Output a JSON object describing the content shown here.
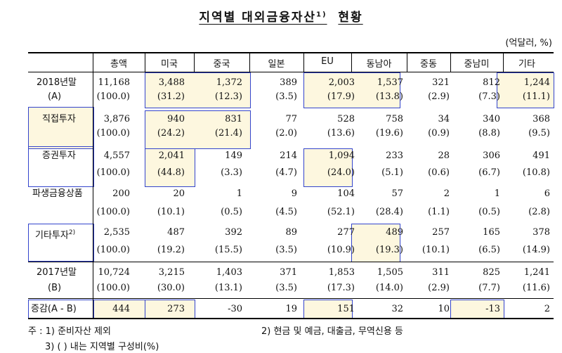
{
  "title": "지역별 대외금융자산",
  "title_sup": "1)",
  "title_suffix": "현황",
  "unit": "(억달러, %)",
  "columns": [
    "총액",
    "미국",
    "중국",
    "일본",
    "EU",
    "동남아",
    "중동",
    "중남미",
    "기타"
  ],
  "rows": {
    "y2018": {
      "label1": "2018년말",
      "label2": "(A)",
      "v": [
        "11,168",
        "3,488",
        "1,372",
        "389",
        "2,003",
        "1,537",
        "321",
        "812",
        "1,244"
      ],
      "p": [
        "(100.0)",
        "(31.2)",
        "(12.3)",
        "(3.5)",
        "(17.9)",
        "(13.8)",
        "(2.9)",
        "(7.3)",
        "(11.1)"
      ]
    },
    "direct": {
      "label": "직접투자",
      "v": [
        "3,876",
        "940",
        "831",
        "77",
        "528",
        "758",
        "34",
        "340",
        "368"
      ],
      "p": [
        "(100.0)",
        "(24.2)",
        "(21.4)",
        "(2.0)",
        "(13.6)",
        "(19.6)",
        "(0.9)",
        "(8.8)",
        "(9.5)"
      ]
    },
    "securities": {
      "label": "증권투자",
      "v": [
        "4,557",
        "2,041",
        "149",
        "214",
        "1,094",
        "233",
        "28",
        "306",
        "491"
      ],
      "p": [
        "(100.0)",
        "(44.8)",
        "(3.3)",
        "(4.7)",
        "(24.0)",
        "(5.1)",
        "(0.6)",
        "(6.7)",
        "(10.8)"
      ]
    },
    "derivatives": {
      "label": "파생금융상품",
      "v": [
        "200",
        "20",
        "1",
        "9",
        "104",
        "57",
        "2",
        "1",
        "6"
      ],
      "p": [
        "(100.0)",
        "(10.1)",
        "(0.5)",
        "(4.5)",
        "(52.1)",
        "(28.4)",
        "(1.1)",
        "(0.5)",
        "(2.8)"
      ]
    },
    "other": {
      "label": "기타투자",
      "label_sup": "2)",
      "v": [
        "2,535",
        "487",
        "392",
        "89",
        "277",
        "489",
        "257",
        "165",
        "378"
      ],
      "p": [
        "(100.0)",
        "(19.2)",
        "(15.5)",
        "(3.5)",
        "(10.9)",
        "(19.3)",
        "(10.1)",
        "(6.5)",
        "(14.9)"
      ]
    },
    "y2017": {
      "label1": "2017년말",
      "label2": "(B)",
      "v": [
        "10,724",
        "3,215",
        "1,403",
        "371",
        "1,853",
        "1,505",
        "311",
        "825",
        "1,241"
      ],
      "p": [
        "(100.0)",
        "(30.0)",
        "(13.1)",
        "(3.5)",
        "(17.3)",
        "(14.0)",
        "(2.9)",
        "(7.7)",
        "(11.6)"
      ]
    },
    "diff": {
      "label": "증감(A - B)",
      "v": [
        "444",
        "273",
        "-30",
        "19",
        "151",
        "32",
        "10",
        "-13",
        "2"
      ]
    }
  },
  "notes": {
    "n1": "주 : 1) 준비자산 제외",
    "n2": "2) 현금 및 예금, 대출금, 무역신용 등",
    "n3": "3) (  ) 내는 지역별 구성비(%)"
  },
  "colors": {
    "highlight_border": "#3344cc",
    "highlight_fill": "#fdf7df"
  }
}
